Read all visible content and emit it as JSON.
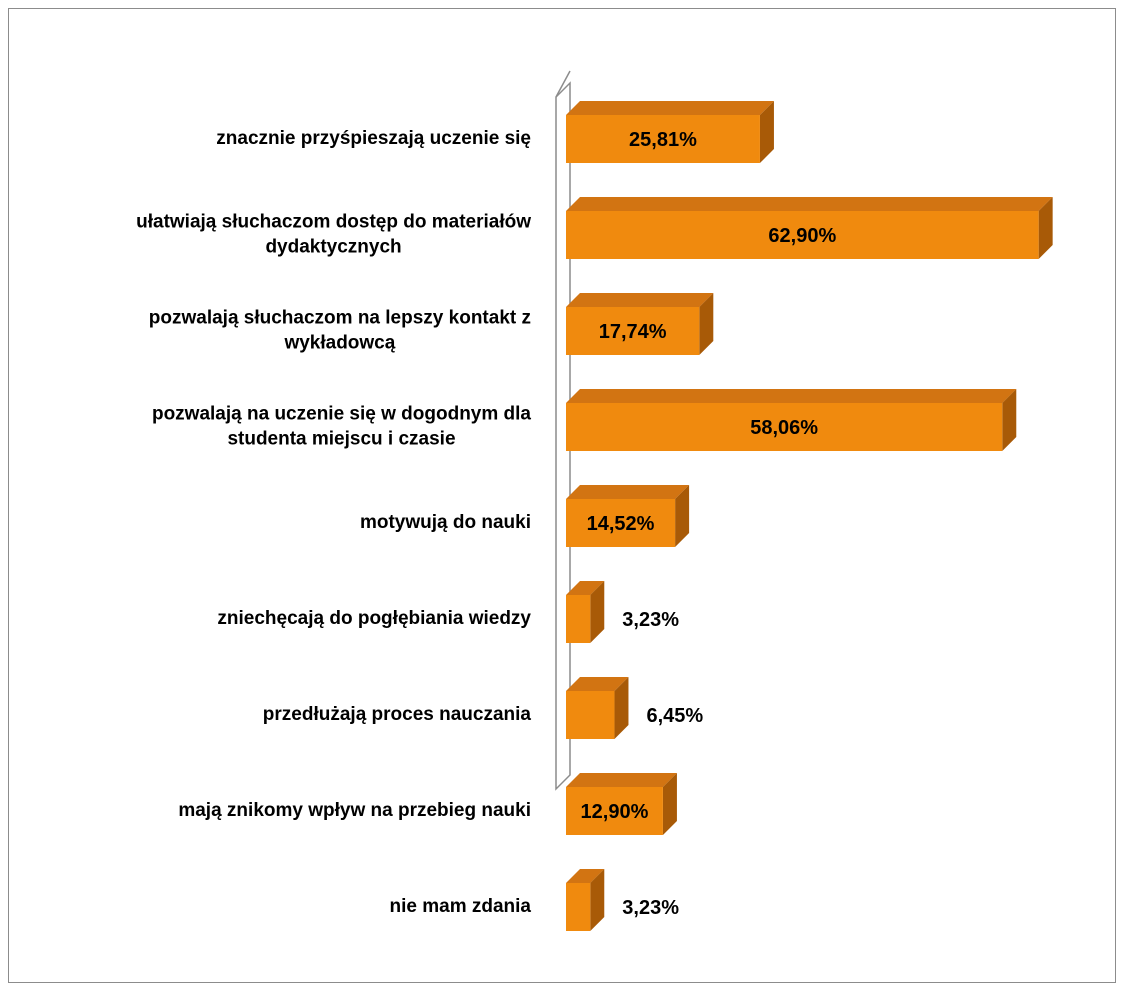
{
  "chart_data": {
    "type": "bar",
    "orientation": "horizontal",
    "style": "3d",
    "title": "",
    "xlabel": "",
    "ylabel": "",
    "xlim": [
      0,
      70
    ],
    "grid": false,
    "legend": "none",
    "bar_color": "#F08A0E",
    "bar_side_color": "#A85A07",
    "bar_top_color": "#D27412",
    "categories": [
      [
        "znacznie przyśpieszają uczenie się"
      ],
      [
        "ułatwiają  słuchaczom  dostęp do materiałów",
        "dydaktycznych"
      ],
      [
        "pozwalają słuchaczom na lepszy kontakt z",
        "wykładowcą"
      ],
      [
        "pozwalają na uczenie się w dogodnym dla",
        "studenta miejscu i czasie"
      ],
      [
        "motywują do nauki"
      ],
      [
        "zniechęcają do pogłębiania wiedzy"
      ],
      [
        "przedłużają proces nauczania"
      ],
      [
        "mają znikomy wpływ na przebieg nauki"
      ],
      [
        "nie mam zdania"
      ]
    ],
    "values": [
      25.81,
      62.9,
      17.74,
      58.06,
      14.52,
      3.23,
      6.45,
      12.9,
      3.23
    ],
    "value_labels": [
      "25,81%",
      "62,90%",
      "17,74%",
      "58,06%",
      "14,52%",
      "3,23%",
      "6,45%",
      "12,90%",
      "3,23%"
    ]
  }
}
